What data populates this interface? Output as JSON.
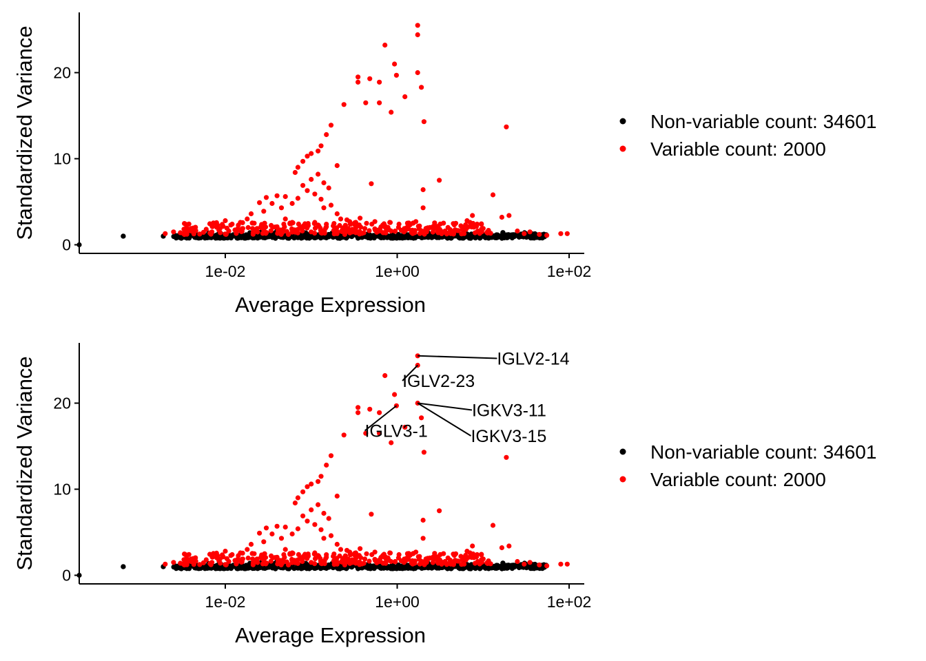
{
  "chart_data": [
    {
      "type": "scatter",
      "title": "",
      "xlabel": "Average Expression",
      "ylabel": "Standardized Variance",
      "x_scale": "log10",
      "xlim": [
        0.0002,
        150
      ],
      "ylim": [
        -1,
        27
      ],
      "x_ticks": [
        {
          "value": 0.01,
          "label": "1e-02"
        },
        {
          "value": 1,
          "label": "1e+00"
        },
        {
          "value": 100,
          "label": "1e+02"
        }
      ],
      "y_ticks": [
        {
          "value": 0,
          "label": "0"
        },
        {
          "value": 10,
          "label": "10"
        },
        {
          "value": 20,
          "label": "20"
        }
      ],
      "grid": false,
      "legend_position": "right",
      "series": [
        {
          "name": "Non-variable count: 34601",
          "color": "#000000",
          "points": []
        },
        {
          "name": "Variable count: 2000",
          "color": "#ff0000",
          "points": [
            [
              1.73,
              25.5
            ],
            [
              1.73,
              24.4
            ],
            [
              0.72,
              23.2
            ],
            [
              0.93,
              21.0
            ],
            [
              1.73,
              20.0
            ],
            [
              0.98,
              19.7
            ],
            [
              0.35,
              19.5
            ],
            [
              0.35,
              18.9
            ],
            [
              0.48,
              19.3
            ],
            [
              0.62,
              18.9
            ],
            [
              1.91,
              18.3
            ],
            [
              1.23,
              17.2
            ],
            [
              0.43,
              16.5
            ],
            [
              0.62,
              16.5
            ],
            [
              0.85,
              15.4
            ],
            [
              0.24,
              16.3
            ],
            [
              2.05,
              14.3
            ],
            [
              18.6,
              13.7
            ],
            [
              0.17,
              13.9
            ],
            [
              0.15,
              12.8
            ],
            [
              0.13,
              11.5
            ],
            [
              0.12,
              10.9
            ],
            [
              0.1,
              10.6
            ],
            [
              0.09,
              10.3
            ],
            [
              0.08,
              9.7
            ],
            [
              0.07,
              9.0
            ],
            [
              0.065,
              8.4
            ],
            [
              0.1,
              7.6
            ],
            [
              0.12,
              8.2
            ],
            [
              0.14,
              7.2
            ],
            [
              0.16,
              6.6
            ],
            [
              0.2,
              9.2
            ],
            [
              0.08,
              6.9
            ],
            [
              0.09,
              6.3
            ],
            [
              0.11,
              5.9
            ],
            [
              0.13,
              5.3
            ],
            [
              0.17,
              4.6
            ],
            [
              0.2,
              3.6
            ],
            [
              0.26,
              2.9
            ],
            [
              0.33,
              2.6
            ],
            [
              0.5,
              7.1
            ],
            [
              3.09,
              7.5
            ],
            [
              2.0,
              6.4
            ],
            [
              2.0,
              4.3
            ],
            [
              0.07,
              5.4
            ],
            [
              0.06,
              4.8
            ],
            [
              0.05,
              5.6
            ],
            [
              0.045,
              4.3
            ],
            [
              0.04,
              5.7
            ],
            [
              0.035,
              4.8
            ],
            [
              0.03,
              5.5
            ],
            [
              0.028,
              3.9
            ],
            [
              0.025,
              4.9
            ],
            [
              0.02,
              3.6
            ],
            [
              0.018,
              3.0
            ],
            [
              0.015,
              2.6
            ],
            [
              0.012,
              2.4
            ],
            [
              0.01,
              2.8
            ],
            [
              0.008,
              2.1
            ],
            [
              0.006,
              1.8
            ],
            [
              0.004,
              1.6
            ],
            [
              0.003,
              1.4
            ],
            [
              0.002,
              1.3
            ],
            [
              0.004,
              1.9
            ],
            [
              0.0025,
              1.5
            ],
            [
              0.14,
              4.3
            ],
            [
              0.22,
              3.0
            ],
            [
              0.28,
              2.7
            ],
            [
              0.37,
              3.1
            ],
            [
              0.44,
              2.5
            ],
            [
              0.55,
              2.7
            ],
            [
              0.68,
              2.3
            ],
            [
              0.82,
              2.6
            ],
            [
              1.05,
              2.4
            ],
            [
              1.35,
              2.2
            ],
            [
              1.65,
              2.7
            ],
            [
              2.3,
              1.9
            ],
            [
              2.8,
              2.0
            ],
            [
              3.6,
              1.6
            ],
            [
              4.8,
              2.5
            ],
            [
              5.5,
              2.2
            ],
            [
              6.5,
              2.8
            ],
            [
              7.5,
              3.4
            ],
            [
              8.5,
              2.4
            ],
            [
              10.0,
              1.9
            ],
            [
              13.0,
              5.8
            ],
            [
              16.5,
              3.2
            ],
            [
              20.0,
              3.4
            ],
            [
              25.0,
              1.6
            ],
            [
              30.0,
              1.3
            ],
            [
              35.0,
              1.5
            ],
            [
              45.0,
              1.2
            ],
            [
              55.0,
              1.1
            ],
            [
              80.0,
              1.3
            ],
            [
              95.0,
              1.3
            ],
            [
              0.05,
              3.0
            ],
            [
              0.06,
              2.6
            ],
            [
              0.09,
              2.4
            ],
            [
              0.11,
              2.6
            ],
            [
              0.15,
              2.1
            ],
            [
              0.18,
              2.2
            ],
            [
              0.24,
              2.0
            ],
            [
              0.3,
              1.8
            ],
            [
              0.42,
              1.9
            ],
            [
              0.6,
              1.7
            ],
            [
              0.75,
              1.8
            ],
            [
              0.95,
              1.6
            ],
            [
              1.2,
              1.5
            ],
            [
              1.5,
              1.7
            ],
            [
              2.2,
              1.5
            ],
            [
              3.0,
              1.4
            ],
            [
              4.2,
              1.3
            ],
            [
              6.0,
              1.3
            ],
            [
              0.04,
              2.1
            ],
            [
              0.07,
              1.8
            ],
            [
              0.1,
              1.5
            ],
            [
              0.13,
              1.4
            ],
            [
              0.2,
              1.3
            ],
            [
              0.33,
              1.4
            ],
            [
              0.016,
              1.9
            ],
            [
              0.022,
              1.7
            ],
            [
              0.011,
              1.6
            ],
            [
              0.007,
              1.5
            ]
          ]
        }
      ],
      "annotations": []
    },
    {
      "type": "scatter",
      "title": "",
      "xlabel": "Average Expression",
      "ylabel": "Standardized Variance",
      "x_scale": "log10",
      "xlim": [
        0.0002,
        150
      ],
      "ylim": [
        -1,
        27
      ],
      "x_ticks": [
        {
          "value": 0.01,
          "label": "1e-02"
        },
        {
          "value": 1,
          "label": "1e+00"
        },
        {
          "value": 100,
          "label": "1e+02"
        }
      ],
      "y_ticks": [
        {
          "value": 0,
          "label": "0"
        },
        {
          "value": 10,
          "label": "10"
        },
        {
          "value": 20,
          "label": "20"
        }
      ],
      "grid": false,
      "legend_position": "right",
      "series": [
        {
          "name": "Non-variable count: 34601",
          "color": "#000000",
          "points": []
        },
        {
          "name": "Variable count: 2000",
          "color": "#ff0000",
          "points": []
        }
      ],
      "annotations": [
        {
          "label": "IGLV2-14",
          "x": 1.73,
          "y": 25.5,
          "label_x": 14.5,
          "label_y": 25.2
        },
        {
          "label": "IGLV2-23",
          "x": 1.73,
          "y": 24.4,
          "label_x": 1.15,
          "label_y": 22.6
        },
        {
          "label": "IGKV3-11",
          "x": 1.73,
          "y": 20.0,
          "label_x": 7.4,
          "label_y": 19.2
        },
        {
          "label": "IGKV3-15",
          "x": 1.73,
          "y": 20.0,
          "label_x": 7.2,
          "label_y": 16.2
        },
        {
          "label": "IGLV3-1",
          "x": 0.98,
          "y": 19.7,
          "label_x": 0.42,
          "label_y": 16.8
        }
      ]
    }
  ]
}
